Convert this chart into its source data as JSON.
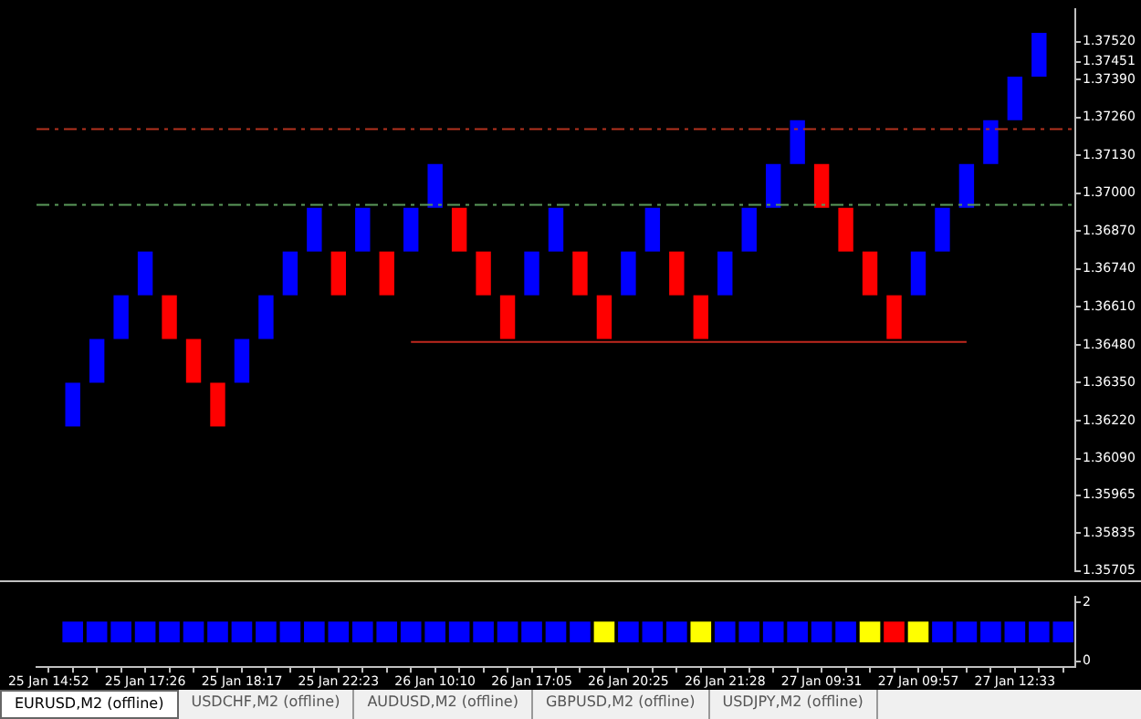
{
  "chart_data": [
    {
      "type": "bar",
      "categories": [
        null,
        null,
        null,
        null,
        null,
        null,
        null,
        null,
        null,
        null,
        null,
        null,
        null,
        null,
        null,
        null,
        null,
        null,
        null,
        null,
        null,
        null,
        null,
        null,
        null,
        null,
        null,
        null,
        null,
        null,
        null,
        null,
        null,
        null,
        null,
        null,
        null,
        null,
        null,
        null,
        null,
        null,
        null
      ],
      "series": [
        {
          "type": "bar",
          "base": [
            null,
            1.362,
            1.3635,
            1.365,
            1.3665,
            1.3665,
            1.365,
            1.3635,
            1.3635,
            1.365,
            1.3665,
            1.368,
            1.368,
            1.368,
            1.368,
            1.368,
            1.3695,
            1.3695,
            1.368,
            1.3665,
            1.3665,
            1.368,
            1.368,
            1.3665,
            1.3665,
            1.368,
            1.368,
            1.3665,
            1.3665,
            1.368,
            1.3695,
            1.371,
            1.371,
            1.3695,
            1.368,
            1.3665,
            1.3665,
            1.368,
            1.3695,
            1.371,
            1.3725,
            1.374,
            null
          ],
          "values": [
            null,
            0.0015,
            0.0015,
            0.0015,
            0.0015,
            -0.0015,
            -0.0015,
            -0.0015,
            0.0015,
            0.0015,
            0.0015,
            0.0015,
            -0.0015,
            0.0015,
            -0.0015,
            0.0015,
            0.0015,
            -0.0015,
            -0.0015,
            -0.0015,
            0.0015,
            0.0015,
            -0.0015,
            -0.0015,
            0.0015,
            0.0015,
            -0.0015,
            -0.0015,
            0.0015,
            0.0015,
            0.0015,
            0.0015,
            -0.0015,
            -0.0015,
            -0.0015,
            -0.0015,
            0.0015,
            0.0015,
            0.0015,
            0.0015,
            0.0015,
            0.0015,
            null
          ],
          "colors": [
            "#0000ff",
            "#0000ff",
            "#0000ff",
            "#0000ff",
            "#0000ff",
            "#ff0000",
            "#ff0000",
            "#ff0000",
            "#0000ff",
            "#0000ff",
            "#0000ff",
            "#0000ff",
            "#ff0000",
            "#0000ff",
            "#ff0000",
            "#0000ff",
            "#0000ff",
            "#ff0000",
            "#ff0000",
            "#ff0000",
            "#0000ff",
            "#0000ff",
            "#ff0000",
            "#ff0000",
            "#0000ff",
            "#0000ff",
            "#ff0000",
            "#ff0000",
            "#0000ff",
            "#0000ff",
            "#0000ff",
            "#0000ff",
            "#ff0000",
            "#ff0000",
            "#ff0000",
            "#ff0000",
            "#0000ff",
            "#0000ff",
            "#0000ff",
            "#0000ff",
            "#0000ff",
            "#0000ff",
            "#0000ff"
          ]
        },
        {
          "type": "line",
          "color": "#c0281e",
          "values": [
            null,
            null,
            null,
            null,
            null,
            null,
            null,
            null,
            null,
            null,
            null,
            null,
            null,
            null,
            null,
            1.3649,
            1.3649,
            1.3649,
            1.3649,
            1.3649,
            1.3649,
            1.3649,
            1.3649,
            1.3649,
            1.3649,
            1.3649,
            1.3649,
            1.3649,
            1.3649,
            1.3649,
            1.3649,
            1.3649,
            1.3649,
            1.3649,
            1.3649,
            1.3649,
            1.3649,
            1.3649,
            1.3649,
            null,
            null,
            null,
            null
          ]
        }
      ],
      "ylim": [
        1.35705,
        1.3763
      ],
      "yticks": [
        {
          "value": 1.3752,
          "label": "1.37520"
        },
        {
          "value": 1.37451,
          "label": "1.37451"
        },
        {
          "value": 1.3739,
          "label": "1.37390"
        },
        {
          "value": 1.3726,
          "label": "1.37260"
        },
        {
          "value": 1.3713,
          "label": "1.37130"
        },
        {
          "value": 1.37,
          "label": "1.37000"
        },
        {
          "value": 1.3687,
          "label": "1.36870"
        },
        {
          "value": 1.3674,
          "label": "1.36740"
        },
        {
          "value": 1.3661,
          "label": "1.36610"
        },
        {
          "value": 1.3648,
          "label": "1.36480"
        },
        {
          "value": 1.3635,
          "label": "1.36350"
        },
        {
          "value": 1.3622,
          "label": "1.36220"
        },
        {
          "value": 1.3609,
          "label": "1.36090"
        },
        1.35965,
        1.35835,
        1.35705
      ],
      "ref_lines": [
        {
          "axis": "y",
          "value": 1.3722,
          "color": "#b4321e",
          "line_style": "dashed"
        },
        {
          "axis": "y",
          "value": 1.3696,
          "color": "#5a9a5a",
          "line_style": "dashed"
        }
      ],
      "tick_labels": "y",
      "annotations": [
        "EURUSD,M2 (offline)",
        "USDCHF,M2 (offline)",
        "AUDUSD,M2 (offline)",
        "GBPUSD,M2 (offline)",
        "USDJPY,M2 (offline)"
      ]
    },
    {
      "type": "scatter",
      "marker": "square",
      "categories": [
        "25 Jan 14:52",
        null,
        null,
        null,
        "25 Jan 17:26",
        null,
        null,
        null,
        "25 Jan 18:17",
        null,
        null,
        null,
        "25 Jan 22:23",
        null,
        null,
        null,
        "26 Jan 10:10",
        null,
        null,
        null,
        "26 Jan 17:05",
        null,
        null,
        null,
        "26 Jan 20:25",
        null,
        null,
        null,
        "26 Jan 21:28",
        null,
        null,
        null,
        "27 Jan 09:31",
        null,
        null,
        null,
        "27 Jan 09:57",
        null,
        null,
        null,
        "27 Jan 12:33",
        null,
        null
      ],
      "values": [
        null,
        1,
        1,
        1,
        1,
        1,
        1,
        1,
        1,
        1,
        1,
        1,
        1,
        1,
        1,
        1,
        1,
        1,
        1,
        1,
        1,
        1,
        1,
        1,
        1,
        1,
        1,
        1,
        1,
        1,
        1,
        1,
        1,
        1,
        1,
        1,
        1,
        1,
        1,
        1,
        1,
        1,
        1
      ],
      "colors": [
        "#0000ff",
        "#0000ff",
        "#0000ff",
        "#0000ff",
        "#0000ff",
        "#0000ff",
        "#0000ff",
        "#0000ff",
        "#0000ff",
        "#0000ff",
        "#0000ff",
        "#0000ff",
        "#0000ff",
        "#0000ff",
        "#0000ff",
        "#0000ff",
        "#0000ff",
        "#0000ff",
        "#0000ff",
        "#0000ff",
        "#0000ff",
        "#0000ff",
        "#0000ff",
        "#ffff00",
        "#0000ff",
        "#0000ff",
        "#0000ff",
        "#ffff00",
        "#0000ff",
        "#0000ff",
        "#0000ff",
        "#0000ff",
        "#0000ff",
        "#0000ff",
        "#ffff00",
        "#ff0000",
        "#ffff00",
        "#0000ff",
        "#0000ff",
        "#0000ff",
        "#0000ff",
        "#0000ff",
        "#0000ff"
      ],
      "ylim": [
        -0.2,
        2.2
      ],
      "yticks": [
        0,
        2
      ]
    }
  ]
}
